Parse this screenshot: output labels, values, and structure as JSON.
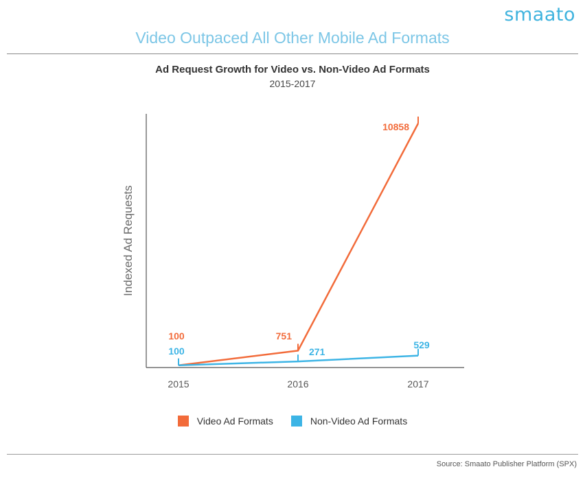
{
  "brand": {
    "logo_text": "smaato"
  },
  "headline": "Video Outpaced All Other Mobile Ad Formats",
  "footer": {
    "source": "Source: Smaato Publisher Platform (SPX)"
  },
  "colors": {
    "video": "#f26b3a",
    "nonvideo": "#3cb4e5",
    "axis": "#555555"
  },
  "chart_data": {
    "type": "line",
    "title": "Ad Request Growth for Video vs. Non-Video Ad Formats",
    "subtitle": "2015-2017",
    "xlabel": "",
    "ylabel": "Indexed Ad Requests",
    "categories": [
      "2015",
      "2016",
      "2017"
    ],
    "ylim": [
      0,
      10858
    ],
    "grid": false,
    "legend_position": "bottom",
    "series": [
      {
        "name": "Video Ad Formats",
        "values": [
          100,
          751,
          10858
        ],
        "labels": [
          "100",
          "751",
          "10858"
        ]
      },
      {
        "name": "Non-Video Ad Formats",
        "values": [
          100,
          271,
          529
        ],
        "labels": [
          "100",
          "271",
          "529"
        ]
      }
    ]
  }
}
